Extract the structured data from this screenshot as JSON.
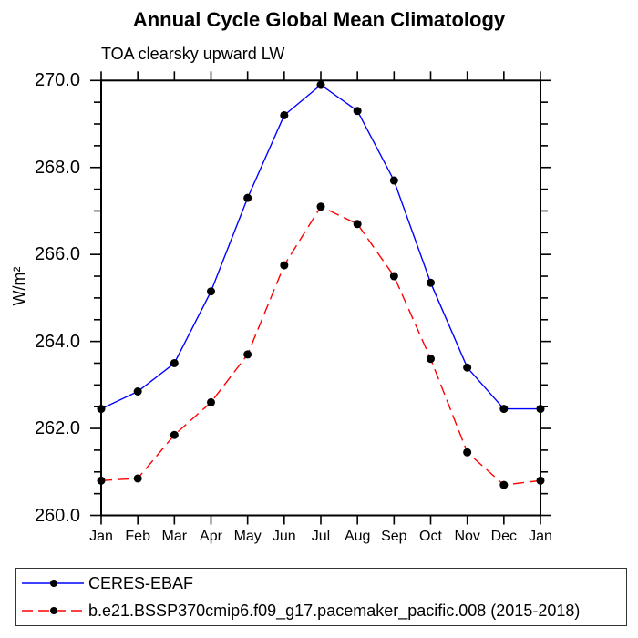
{
  "chart_data": {
    "type": "line",
    "title": "Annual Cycle Global Mean Climatology",
    "subtitle": "TOA clearsky upward LW",
    "ylabel": "W/m²",
    "xlabel": "",
    "categories": [
      "Jan",
      "Feb",
      "Mar",
      "Apr",
      "May",
      "Jun",
      "Jul",
      "Aug",
      "Sep",
      "Oct",
      "Nov",
      "Dec",
      "Jan"
    ],
    "ylim": [
      260.0,
      270.0
    ],
    "yticks": [
      {
        "value": 260.0,
        "label": "260.0"
      },
      {
        "value": 262.0,
        "label": "262.0"
      },
      {
        "value": 264.0,
        "label": "264.0"
      },
      {
        "value": 266.0,
        "label": "266.0"
      },
      {
        "value": 268.0,
        "label": "268.0"
      },
      {
        "value": 270.0,
        "label": "270.0"
      }
    ],
    "ytick_minor_interval": 0.5,
    "grid": false,
    "legend_position": "bottom box",
    "frame_color": "#000000",
    "series": [
      {
        "name": "CERES-EBAF",
        "color": "#0000ff",
        "line_style": "solid",
        "marker": "circle",
        "marker_color": "#000000",
        "values": [
          262.45,
          262.85,
          263.5,
          265.15,
          267.3,
          269.2,
          269.9,
          269.3,
          267.7,
          265.35,
          263.4,
          262.45,
          262.45
        ]
      },
      {
        "name": "b.e21.BSSP370cmip6.f09_g17.pacemaker_pacific.008 (2015-2018)",
        "color": "#ff0000",
        "line_style": "dashed",
        "marker": "circle",
        "marker_color": "#000000",
        "values": [
          260.8,
          260.85,
          261.85,
          262.6,
          263.7,
          265.75,
          267.1,
          266.7,
          265.5,
          263.6,
          261.45,
          260.7,
          260.8
        ]
      }
    ]
  }
}
